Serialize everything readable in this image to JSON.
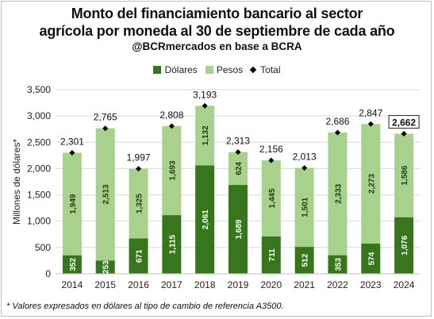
{
  "chart_data": {
    "type": "bar",
    "title": "Monto del financiamiento bancario al sector agrícola por moneda al 30 de septiembre de cada año",
    "subtitle": "@BCRmercados en base a BCRA",
    "ylabel": "Millones de dólares*",
    "xlabel": "",
    "ylim": [
      0,
      3500
    ],
    "yticks": [
      "0",
      "500",
      "1,000",
      "1,500",
      "2,000",
      "2,500",
      "3,000",
      "3,500"
    ],
    "categories": [
      "2014",
      "2015",
      "2016",
      "2017",
      "2018",
      "2019",
      "2020",
      "2021",
      "2022",
      "2023",
      "2024"
    ],
    "series": [
      {
        "name": "Dólares",
        "color": "#38761d",
        "values": [
          352,
          253,
          671,
          1115,
          2061,
          1689,
          711,
          512,
          353,
          574,
          1076
        ],
        "labels": [
          "352",
          "253",
          "671",
          "1,115",
          "2,061",
          "1,689",
          "711",
          "512",
          "353",
          "574",
          "1,076"
        ]
      },
      {
        "name": "Pesos",
        "color": "#a9d18e",
        "values": [
          1949,
          2513,
          1325,
          1693,
          1132,
          624,
          1445,
          1501,
          2333,
          2273,
          1586
        ],
        "labels": [
          "1,949",
          "2,513",
          "1,325",
          "1,693",
          "1,132",
          "624",
          "1,445",
          "1,501",
          "2,333",
          "2,273",
          "1,586"
        ]
      },
      {
        "name": "Total",
        "color": "#000000",
        "values": [
          2301,
          2765,
          1997,
          2808,
          3193,
          2313,
          2156,
          2013,
          2686,
          2847,
          2662
        ],
        "labels": [
          "2,301",
          "2,765",
          "1,997",
          "2,808",
          "3,193",
          "2,313",
          "2,156",
          "2,013",
          "2,686",
          "2,847",
          "2,662"
        ]
      }
    ],
    "highlighted_total": "2024",
    "grid": true,
    "legend_position": "top-center"
  },
  "footnote": "* Valores expresados en dólares al tipo de cambio de referencia A3500.",
  "title_line1": "Monto del financiamiento bancario al sector",
  "title_line2": "agrícola por moneda al 30 de septiembre de cada año"
}
